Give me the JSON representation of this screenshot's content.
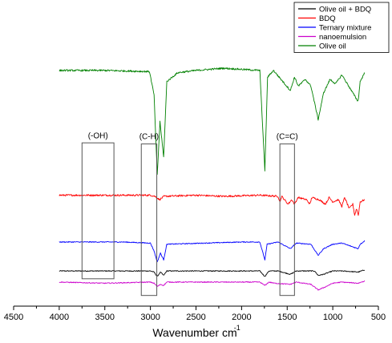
{
  "chart_data": {
    "type": "line",
    "title": "",
    "xlabel": "Wavenumber cm",
    "xlabel_superscript": "-1",
    "ylabel": "",
    "x_reversed": true,
    "xlim": [
      4500,
      500
    ],
    "x_ticks": [
      4500,
      4000,
      3500,
      3000,
      2500,
      2000,
      1500,
      1000,
      500
    ],
    "legend_position": "top-right",
    "grid": false,
    "y_axis_visible": false,
    "series": [
      {
        "name": "Olive oil + BDQ",
        "color": "#000000",
        "baseline": 0.05,
        "noise": 0.002,
        "points": [
          [
            4000,
            0.05
          ],
          [
            3000,
            0.05
          ],
          [
            2960,
            0.045
          ],
          [
            2925,
            0.025
          ],
          [
            2890,
            0.045
          ],
          [
            2855,
            0.03
          ],
          [
            2820,
            0.05
          ],
          [
            1800,
            0.05
          ],
          [
            1745,
            0.025
          ],
          [
            1700,
            0.05
          ],
          [
            1600,
            0.05
          ],
          [
            1465,
            0.035
          ],
          [
            1400,
            0.05
          ],
          [
            1200,
            0.05
          ],
          [
            1160,
            0.03
          ],
          [
            1100,
            0.035
          ],
          [
            1000,
            0.05
          ],
          [
            900,
            0.05
          ],
          [
            722,
            0.045
          ],
          [
            650,
            0.055
          ]
        ]
      },
      {
        "name": "BDQ",
        "color": "#ff0000",
        "baseline": 0.39,
        "noise": 0.004,
        "points": [
          [
            4000,
            0.39
          ],
          [
            3000,
            0.39
          ],
          [
            2950,
            0.385
          ],
          [
            2900,
            0.37
          ],
          [
            2850,
            0.385
          ],
          [
            2500,
            0.39
          ],
          [
            2200,
            0.385
          ],
          [
            1800,
            0.39
          ],
          [
            1600,
            0.385
          ],
          [
            1580,
            0.36
          ],
          [
            1560,
            0.385
          ],
          [
            1490,
            0.35
          ],
          [
            1450,
            0.37
          ],
          [
            1420,
            0.35
          ],
          [
            1380,
            0.38
          ],
          [
            1290,
            0.37
          ],
          [
            1250,
            0.35
          ],
          [
            1230,
            0.38
          ],
          [
            1150,
            0.37
          ],
          [
            1080,
            0.35
          ],
          [
            1040,
            0.38
          ],
          [
            1000,
            0.36
          ],
          [
            940,
            0.37
          ],
          [
            900,
            0.34
          ],
          [
            870,
            0.38
          ],
          [
            820,
            0.33
          ],
          [
            780,
            0.35
          ],
          [
            760,
            0.3
          ],
          [
            740,
            0.33
          ],
          [
            720,
            0.3
          ],
          [
            700,
            0.36
          ],
          [
            650,
            0.37
          ]
        ]
      },
      {
        "name": "Ternary mixture",
        "color": "#0000ff",
        "baseline": 0.18,
        "noise": 0.002,
        "points": [
          [
            4000,
            0.18
          ],
          [
            3300,
            0.18
          ],
          [
            3000,
            0.175
          ],
          [
            2960,
            0.14
          ],
          [
            2925,
            0.09
          ],
          [
            2890,
            0.13
          ],
          [
            2855,
            0.1
          ],
          [
            2820,
            0.17
          ],
          [
            2000,
            0.18
          ],
          [
            1800,
            0.18
          ],
          [
            1745,
            0.1
          ],
          [
            1720,
            0.17
          ],
          [
            1600,
            0.18
          ],
          [
            1465,
            0.15
          ],
          [
            1400,
            0.175
          ],
          [
            1240,
            0.17
          ],
          [
            1160,
            0.12
          ],
          [
            1100,
            0.15
          ],
          [
            1000,
            0.17
          ],
          [
            900,
            0.175
          ],
          [
            722,
            0.15
          ],
          [
            700,
            0.17
          ],
          [
            650,
            0.185
          ]
        ]
      },
      {
        "name": "nanoemulsion",
        "color": "#cc00cc",
        "baseline": 0.0,
        "noise": 0.002,
        "points": [
          [
            4000,
            0.0
          ],
          [
            3500,
            -0.005
          ],
          [
            3000,
            0.0
          ],
          [
            2960,
            -0.005
          ],
          [
            2925,
            -0.02
          ],
          [
            2890,
            -0.01
          ],
          [
            2855,
            -0.015
          ],
          [
            2820,
            0.0
          ],
          [
            1800,
            0.0
          ],
          [
            1745,
            -0.015
          ],
          [
            1700,
            0.0
          ],
          [
            1640,
            -0.005
          ],
          [
            1465,
            -0.01
          ],
          [
            1400,
            0.0
          ],
          [
            1240,
            -0.01
          ],
          [
            1160,
            -0.035
          ],
          [
            1100,
            -0.025
          ],
          [
            1000,
            -0.005
          ],
          [
            900,
            0.0
          ],
          [
            722,
            -0.005
          ],
          [
            650,
            0.005
          ]
        ]
      },
      {
        "name": "Olive oil",
        "color": "#008000",
        "baseline": 0.95,
        "noise": 0.004,
        "points": [
          [
            4000,
            0.95
          ],
          [
            3500,
            0.95
          ],
          [
            3010,
            0.945
          ],
          [
            2960,
            0.84
          ],
          [
            2925,
            0.48
          ],
          [
            2895,
            0.72
          ],
          [
            2855,
            0.56
          ],
          [
            2820,
            0.9
          ],
          [
            2700,
            0.94
          ],
          [
            2500,
            0.95
          ],
          [
            2200,
            0.96
          ],
          [
            2000,
            0.955
          ],
          [
            1800,
            0.95
          ],
          [
            1745,
            0.5
          ],
          [
            1715,
            0.92
          ],
          [
            1650,
            0.95
          ],
          [
            1465,
            0.86
          ],
          [
            1420,
            0.92
          ],
          [
            1377,
            0.88
          ],
          [
            1300,
            0.91
          ],
          [
            1240,
            0.88
          ],
          [
            1160,
            0.73
          ],
          [
            1100,
            0.85
          ],
          [
            1030,
            0.91
          ],
          [
            970,
            0.89
          ],
          [
            900,
            0.93
          ],
          [
            722,
            0.81
          ],
          [
            700,
            0.9
          ],
          [
            650,
            0.94
          ]
        ]
      }
    ],
    "annotations": [
      {
        "label": "(-OH)",
        "x_range": [
          3750,
          3400
        ],
        "y_range": [
          0.015,
          0.625
        ]
      },
      {
        "label": "(C-H)",
        "x_range": [
          3100,
          2930
        ],
        "y_range": [
          -0.06,
          0.62
        ]
      },
      {
        "label": "(C=C)",
        "x_range": [
          1580,
          1420
        ],
        "y_range": [
          -0.06,
          0.62
        ]
      }
    ]
  },
  "legend": {
    "items": [
      "Olive oil + BDQ",
      "BDQ",
      "Ternary mixture",
      "nanoemulsion",
      "Olive oil"
    ]
  }
}
